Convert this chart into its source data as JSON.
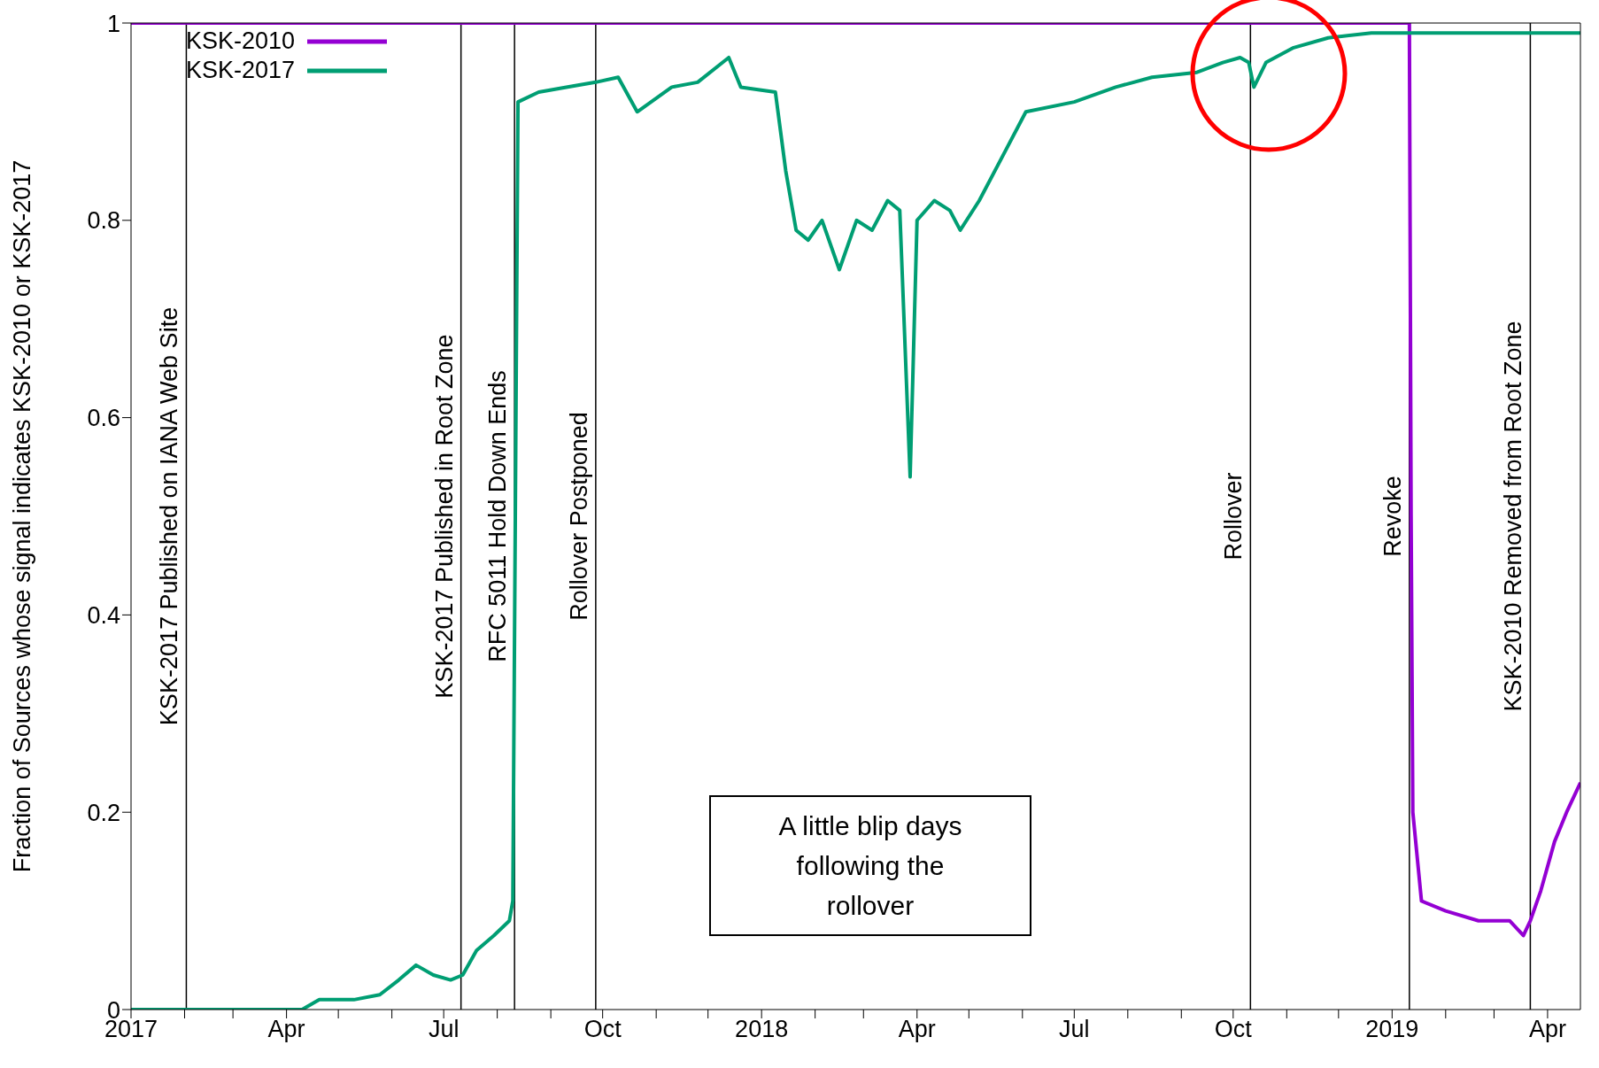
{
  "chart_data": {
    "type": "line",
    "ylabel": "Fraction of Sources whose signal indicates KSK-2010 or KSK-2017",
    "xlim": [
      "2017-01-01",
      "2019-04-20"
    ],
    "xticks": [
      {
        "value": "2017-01-01",
        "label": "2017"
      },
      {
        "value": "2017-02-01",
        "label": null
      },
      {
        "value": "2017-03-01",
        "label": null
      },
      {
        "value": "2017-04-01",
        "label": "Apr"
      },
      {
        "value": "2017-05-01",
        "label": null
      },
      {
        "value": "2017-06-01",
        "label": null
      },
      {
        "value": "2017-07-01",
        "label": "Jul"
      },
      {
        "value": "2017-08-01",
        "label": null
      },
      {
        "value": "2017-09-01",
        "label": null
      },
      {
        "value": "2017-10-01",
        "label": "Oct"
      },
      {
        "value": "2017-11-01",
        "label": null
      },
      {
        "value": "2017-12-01",
        "label": null
      },
      {
        "value": "2018-01-01",
        "label": "2018"
      },
      {
        "value": "2018-02-01",
        "label": null
      },
      {
        "value": "2018-03-01",
        "label": null
      },
      {
        "value": "2018-04-01",
        "label": "Apr"
      },
      {
        "value": "2018-05-01",
        "label": null
      },
      {
        "value": "2018-06-01",
        "label": null
      },
      {
        "value": "2018-07-01",
        "label": "Jul"
      },
      {
        "value": "2018-08-01",
        "label": null
      },
      {
        "value": "2018-09-01",
        "label": null
      },
      {
        "value": "2018-10-01",
        "label": "Oct"
      },
      {
        "value": "2018-11-01",
        "label": null
      },
      {
        "value": "2018-12-01",
        "label": null
      },
      {
        "value": "2019-01-01",
        "label": "2019"
      },
      {
        "value": "2019-02-01",
        "label": null
      },
      {
        "value": "2019-03-01",
        "label": null
      },
      {
        "value": "2019-04-01",
        "label": "Apr"
      }
    ],
    "ylim": [
      0,
      1
    ],
    "yticks": [
      0,
      0.2,
      0.4,
      0.6,
      0.8,
      1
    ],
    "legend": "top left",
    "series": [
      {
        "name": "KSK-2010",
        "color": "#9400d3",
        "x": [
          "2017-01-01",
          "2019-01-11",
          "2019-01-12",
          "2019-01-13",
          "2019-01-18",
          "2019-02-01",
          "2019-02-20",
          "2019-03-10",
          "2019-03-18",
          "2019-03-22",
          "2019-03-28",
          "2019-04-05",
          "2019-04-12",
          "2019-04-20"
        ],
        "values": [
          1,
          1,
          0.5,
          0.2,
          0.11,
          0.1,
          0.09,
          0.09,
          0.075,
          0.09,
          0.12,
          0.17,
          0.2,
          0.23
        ]
      },
      {
        "name": "KSK-2017",
        "color": "#009e73",
        "x": [
          "2017-01-01",
          "2017-04-10",
          "2017-04-20",
          "2017-05-10",
          "2017-05-25",
          "2017-06-05",
          "2017-06-15",
          "2017-06-25",
          "2017-07-05",
          "2017-07-12",
          "2017-07-20",
          "2017-07-30",
          "2017-08-08",
          "2017-08-10",
          "2017-08-13",
          "2017-08-25",
          "2017-09-10",
          "2017-09-27",
          "2017-10-10",
          "2017-10-21",
          "2017-11-10",
          "2017-11-25",
          "2017-12-13",
          "2017-12-20",
          "2018-01-09",
          "2018-01-15",
          "2018-01-21",
          "2018-01-28",
          "2018-02-05",
          "2018-02-15",
          "2018-02-25",
          "2018-03-06",
          "2018-03-15",
          "2018-03-22",
          "2018-03-28",
          "2018-04-01",
          "2018-04-11",
          "2018-04-20",
          "2018-04-26",
          "2018-05-07",
          "2018-05-22",
          "2018-06-03",
          "2018-07-01",
          "2018-07-25",
          "2018-08-15",
          "2018-09-10",
          "2018-09-25",
          "2018-10-05",
          "2018-10-10",
          "2018-10-13",
          "2018-10-20",
          "2018-11-05",
          "2018-11-25",
          "2018-12-20",
          "2019-01-20",
          "2019-04-20"
        ],
        "values": [
          0,
          0,
          0.01,
          0.01,
          0.015,
          0.03,
          0.045,
          0.035,
          0.03,
          0.035,
          0.06,
          0.075,
          0.09,
          0.11,
          0.92,
          0.93,
          0.935,
          0.94,
          0.945,
          0.91,
          0.935,
          0.94,
          0.965,
          0.935,
          0.93,
          0.85,
          0.79,
          0.78,
          0.8,
          0.75,
          0.8,
          0.79,
          0.82,
          0.81,
          0.54,
          0.8,
          0.82,
          0.81,
          0.79,
          0.82,
          0.87,
          0.91,
          0.92,
          0.935,
          0.945,
          0.95,
          0.96,
          0.965,
          0.96,
          0.935,
          0.96,
          0.975,
          0.985,
          0.99,
          0.99,
          0.99
        ]
      }
    ],
    "ref_lines": [
      {
        "axis": "x",
        "value": "2017-02-02",
        "label": "KSK-2017 Published on IANA Web Site"
      },
      {
        "axis": "x",
        "value": "2017-07-11",
        "label": "KSK-2017 Published in Root Zone"
      },
      {
        "axis": "x",
        "value": "2017-08-11",
        "label": "RFC 5011 Hold Down Ends"
      },
      {
        "axis": "x",
        "value": "2017-09-27",
        "label": "Rollover Postponed"
      },
      {
        "axis": "x",
        "value": "2018-10-11",
        "label": "Rollover"
      },
      {
        "axis": "x",
        "value": "2019-01-11",
        "label": "Revoke"
      },
      {
        "axis": "x",
        "value": "2019-03-22",
        "label": "KSK-2010 Removed from Root Zone"
      }
    ],
    "annotations": [
      "A little blip days following the rollover"
    ]
  }
}
